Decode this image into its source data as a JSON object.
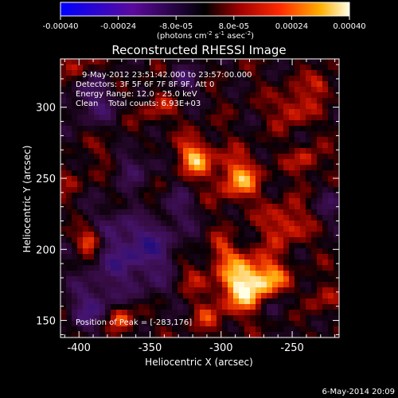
{
  "colorbar": {
    "tick_labels": [
      "-0.00040",
      "-0.00024",
      "-8.0e-05",
      "8.0e-05",
      "0.00024",
      "0.00040"
    ],
    "unit_label": "(photons cm",
    "unit_sup1": "-2",
    "unit_mid": " s",
    "unit_sup2": "-1",
    "unit_end": " asec",
    "unit_sup3": "-2",
    "unit_close": ")"
  },
  "plot": {
    "title": "Reconstructed RHESSI Image",
    "xlabel": "Heliocentric X (arcsec)",
    "ylabel": "Heliocentric Y (arcsec)",
    "annotations": {
      "time_range": "9-May-2012 23:51:42.000 to 23:57:00.000",
      "detectors": "Detectors: 3F 5F 6F 7F 8F 9F, Att 0",
      "energy": "Energy Range: 12.0 - 25.0 keV",
      "clean": "Clean    Total counts: 6.93E+03",
      "peak": "Position of Peak = [-283,176]"
    }
  },
  "timestamp": "6-May-2014 20:09",
  "colors": {
    "background": "#000000",
    "foreground": "#ffffff"
  },
  "chart_data": {
    "type": "heatmap",
    "title": "Reconstructed RHESSI Image",
    "xlabel": "Heliocentric X (arcsec)",
    "ylabel": "Heliocentric Y (arcsec)",
    "xlim": [
      -413,
      -217
    ],
    "ylim": [
      138,
      334
    ],
    "x_ticks": [
      -400,
      -350,
      -300,
      -250
    ],
    "y_ticks": [
      150,
      200,
      250,
      300
    ],
    "colorbar_range": [
      -0.0004,
      0.0004
    ],
    "colorbar_ticks": [
      -0.0004,
      -0.00024,
      -8e-05,
      8e-05,
      0.00024,
      0.0004
    ],
    "peak": [
      -283,
      176
    ]
  }
}
